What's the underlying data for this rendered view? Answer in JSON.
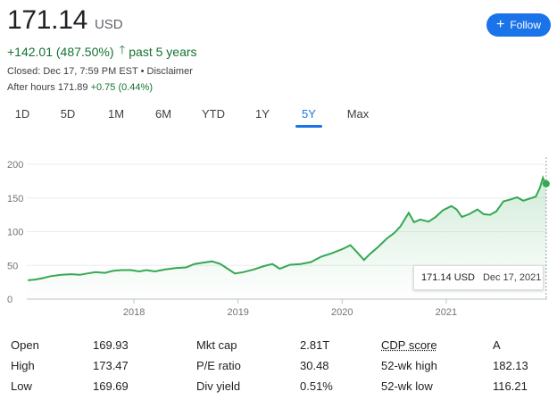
{
  "quote": {
    "price": "171.14",
    "currency": "USD",
    "change": "+142.01 (487.50%)",
    "period": "past 5 years",
    "closed": "Closed: Dec 17, 7:59 PM EST",
    "disclaimer": "Disclaimer",
    "after_hours_label": "After hours 171.89",
    "after_hours_change": "+0.75 (0.44%)"
  },
  "follow_label": "Follow",
  "ranges": [
    "1D",
    "5D",
    "1M",
    "6M",
    "YTD",
    "1Y",
    "5Y",
    "Max"
  ],
  "active_range": "5Y",
  "tooltip": {
    "price": "171.14 USD",
    "date": "Dec 17, 2021"
  },
  "colors": {
    "line": "#34a853",
    "accent": "#1a73e8",
    "positive": "#137333"
  },
  "stats": [
    {
      "label": "Open",
      "value": "169.93"
    },
    {
      "label": "High",
      "value": "173.47"
    },
    {
      "label": "Low",
      "value": "169.69"
    },
    {
      "label": "Mkt cap",
      "value": "2.81T"
    },
    {
      "label": "P/E ratio",
      "value": "30.48"
    },
    {
      "label": "Div yield",
      "value": "0.51%"
    },
    {
      "label": "CDP score",
      "value": "A"
    },
    {
      "label": "52-wk high",
      "value": "182.13"
    },
    {
      "label": "52-wk low",
      "value": "116.21"
    }
  ],
  "chart_data": {
    "type": "area",
    "y_ticks": [
      0,
      50,
      100,
      150,
      200
    ],
    "ylim": [
      0,
      200
    ],
    "x_ticks": [
      {
        "label": "2018",
        "x": 2018.0
      },
      {
        "label": "2019",
        "x": 2019.0
      },
      {
        "label": "2020",
        "x": 2020.0
      },
      {
        "label": "2021",
        "x": 2021.0
      }
    ],
    "xlim": [
      2016.97,
      2021.97
    ],
    "grid": true,
    "series": [
      {
        "name": "",
        "points": [
          [
            2016.98,
            28
          ],
          [
            2017.05,
            29
          ],
          [
            2017.12,
            31
          ],
          [
            2017.2,
            34
          ],
          [
            2017.3,
            36
          ],
          [
            2017.4,
            37
          ],
          [
            2017.48,
            36
          ],
          [
            2017.55,
            38
          ],
          [
            2017.63,
            40
          ],
          [
            2017.72,
            39
          ],
          [
            2017.8,
            42
          ],
          [
            2017.88,
            43
          ],
          [
            2017.97,
            43
          ],
          [
            2018.05,
            41
          ],
          [
            2018.12,
            43
          ],
          [
            2018.2,
            41
          ],
          [
            2018.3,
            44
          ],
          [
            2018.4,
            46
          ],
          [
            2018.5,
            47
          ],
          [
            2018.58,
            52
          ],
          [
            2018.66,
            54
          ],
          [
            2018.75,
            56
          ],
          [
            2018.83,
            52
          ],
          [
            2018.9,
            45
          ],
          [
            2018.97,
            38
          ],
          [
            2019.05,
            40
          ],
          [
            2019.15,
            44
          ],
          [
            2019.25,
            49
          ],
          [
            2019.33,
            52
          ],
          [
            2019.4,
            45
          ],
          [
            2019.5,
            51
          ],
          [
            2019.6,
            52
          ],
          [
            2019.7,
            55
          ],
          [
            2019.8,
            63
          ],
          [
            2019.9,
            68
          ],
          [
            2020.0,
            74
          ],
          [
            2020.08,
            80
          ],
          [
            2020.14,
            70
          ],
          [
            2020.21,
            58
          ],
          [
            2020.26,
            66
          ],
          [
            2020.35,
            78
          ],
          [
            2020.43,
            90
          ],
          [
            2020.5,
            98
          ],
          [
            2020.56,
            108
          ],
          [
            2020.64,
            128
          ],
          [
            2020.69,
            114
          ],
          [
            2020.75,
            118
          ],
          [
            2020.83,
            115
          ],
          [
            2020.9,
            122
          ],
          [
            2020.97,
            132
          ],
          [
            2021.05,
            138
          ],
          [
            2021.1,
            133
          ],
          [
            2021.15,
            122
          ],
          [
            2021.22,
            126
          ],
          [
            2021.3,
            133
          ],
          [
            2021.36,
            126
          ],
          [
            2021.42,
            125
          ],
          [
            2021.48,
            130
          ],
          [
            2021.55,
            145
          ],
          [
            2021.62,
            148
          ],
          [
            2021.68,
            151
          ],
          [
            2021.74,
            146
          ],
          [
            2021.8,
            149
          ],
          [
            2021.86,
            152
          ],
          [
            2021.9,
            165
          ],
          [
            2021.93,
            180
          ],
          [
            2021.95,
            172
          ],
          [
            2021.96,
            171.14
          ]
        ]
      }
    ],
    "last_value": 171.14
  }
}
